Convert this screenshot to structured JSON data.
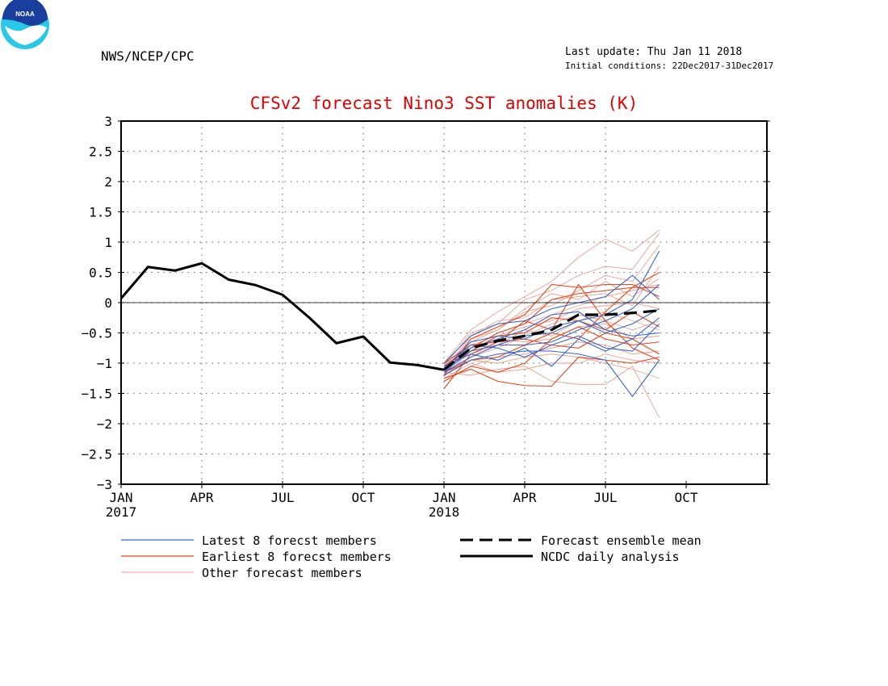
{
  "header": {
    "logo_text": "NOAA",
    "agency": "NWS/NCEP/CPC",
    "last_update": "Last update: Thu Jan 11 2018",
    "initial_conditions": "Initial conditions: 22Dec2017-31Dec2017"
  },
  "colors": {
    "title": "#e00000",
    "latest_members": "#3366cc",
    "earliest_members": "#e8451a",
    "other_members": "#e8a090",
    "analysis": "#000000",
    "ensemble_mean": "#000000"
  },
  "chart_data": {
    "type": "line",
    "title": "CFSv2 forecast Nino3 SST anomalies (K)",
    "ylim": [
      -3,
      3
    ],
    "yticks": [
      "3",
      "2.5",
      "2",
      "1.5",
      "1",
      "0.5",
      "0",
      "−0.5",
      "−1",
      "−1.5",
      "−2",
      "−2.5",
      "−3"
    ],
    "xticks": [
      {
        "label": "JAN",
        "sub": "2017"
      },
      {
        "label": "APR",
        "sub": ""
      },
      {
        "label": "JUL",
        "sub": ""
      },
      {
        "label": "OCT",
        "sub": ""
      },
      {
        "label": "JAN",
        "sub": "2018"
      },
      {
        "label": "APR",
        "sub": ""
      },
      {
        "label": "JUL",
        "sub": ""
      },
      {
        "label": "OCT",
        "sub": ""
      }
    ],
    "x_months": [
      "Jan 2017",
      "Feb 2017",
      "Mar 2017",
      "Apr 2017",
      "May 2017",
      "Jun 2017",
      "Jul 2017",
      "Aug 2017",
      "Sep 2017",
      "Oct 2017",
      "Nov 2017",
      "Dec 2017",
      "Jan 2018",
      "Feb 2018",
      "Mar 2018",
      "Apr 2018",
      "May 2018",
      "Jun 2018",
      "Jul 2018",
      "Aug 2018",
      "Sep 2018",
      "Oct 2018"
    ],
    "grid": true,
    "legend": {
      "latest": "Latest 8 forecst members",
      "earliest": "Earliest 8 forecst members",
      "other": "Other forecast members",
      "mean": "Forecast ensemble mean",
      "analysis": "NCDC daily analysis"
    },
    "series": [
      {
        "name": "NCDC daily analysis",
        "style": "analysis",
        "x": [
          "Jan 2017",
          "Feb 2017",
          "Mar 2017",
          "Apr 2017",
          "May 2017",
          "Jun 2017",
          "Jul 2017",
          "Aug 2017",
          "Sep 2017",
          "Oct 2017",
          "Nov 2017",
          "Dec 2017",
          "Jan 2018"
        ],
        "values": [
          0.07,
          0.59,
          0.53,
          0.65,
          0.38,
          0.29,
          0.13,
          -0.25,
          -0.67,
          -0.56,
          -0.99,
          -1.03,
          -1.11
        ]
      },
      {
        "name": "Forecast ensemble mean",
        "style": "mean",
        "x": [
          "Jan 2018",
          "Feb 2018",
          "Mar 2018",
          "Apr 2018",
          "May 2018",
          "Jun 2018",
          "Jul 2018",
          "Aug 2018",
          "Sep 2018"
        ],
        "values": [
          -1.11,
          -0.75,
          -0.63,
          -0.55,
          -0.45,
          -0.2,
          -0.2,
          -0.17,
          -0.13
        ]
      }
    ],
    "members": [
      {
        "style": "latest",
        "values": [
          -1.1,
          -0.65,
          -0.55,
          -0.6,
          -0.4,
          -0.3,
          -0.2,
          0.05,
          0.85
        ]
      },
      {
        "style": "latest",
        "values": [
          -1.15,
          -0.8,
          -0.7,
          -0.7,
          -0.65,
          -0.45,
          -0.3,
          -0.1,
          0.3
        ]
      },
      {
        "style": "latest",
        "values": [
          -1.2,
          -0.95,
          -0.85,
          -0.8,
          -0.8,
          -0.85,
          -0.95,
          -1.55,
          -0.95
        ]
      },
      {
        "style": "latest",
        "values": [
          -1.0,
          -0.55,
          -0.35,
          -0.3,
          -0.1,
          0.0,
          0.1,
          0.45,
          0.05
        ]
      },
      {
        "style": "latest",
        "values": [
          -1.05,
          -0.85,
          -0.95,
          -0.75,
          -1.05,
          -0.6,
          -0.8,
          -0.6,
          -0.25
        ]
      },
      {
        "style": "latest",
        "values": [
          -1.12,
          -0.75,
          -0.6,
          -0.45,
          -0.2,
          -0.15,
          -0.45,
          -0.55,
          -0.5
        ]
      },
      {
        "style": "latest",
        "values": [
          -1.08,
          -0.7,
          -0.75,
          -0.9,
          -0.7,
          -0.55,
          -0.75,
          -0.8,
          -0.35
        ]
      },
      {
        "style": "latest",
        "values": [
          -1.15,
          -0.9,
          -0.7,
          -0.55,
          -0.5,
          -0.3,
          -0.5,
          -0.35,
          -0.1
        ]
      },
      {
        "style": "earliest",
        "values": [
          -1.25,
          -1.1,
          -1.3,
          -1.37,
          -1.38,
          -0.9,
          -0.95,
          -1.0,
          -0.9
        ]
      },
      {
        "style": "earliest",
        "values": [
          -1.42,
          -0.85,
          -0.65,
          -0.3,
          -0.45,
          0.3,
          -0.3,
          -0.75,
          -0.95
        ]
      },
      {
        "style": "earliest",
        "values": [
          -1.15,
          -0.95,
          -0.9,
          -0.7,
          -0.5,
          -0.6,
          -0.15,
          0.25,
          0.5
        ]
      },
      {
        "style": "earliest",
        "values": [
          -1.05,
          -0.75,
          -0.5,
          -0.35,
          0.05,
          0.15,
          0.2,
          0.25,
          0.25
        ]
      },
      {
        "style": "earliest",
        "values": [
          -1.3,
          -1.05,
          -1.15,
          -1.0,
          -0.6,
          -0.4,
          -0.6,
          -0.7,
          -0.65
        ]
      },
      {
        "style": "earliest",
        "values": [
          -1.1,
          -0.8,
          -0.55,
          -0.5,
          -0.25,
          -0.3,
          -0.45,
          -0.15,
          -0.4
        ]
      },
      {
        "style": "earliest",
        "values": [
          -1.2,
          -0.6,
          -0.4,
          -0.2,
          0.3,
          0.25,
          0.3,
          0.3,
          0.1
        ]
      },
      {
        "style": "earliest",
        "values": [
          -1.0,
          -0.7,
          -0.65,
          -0.6,
          -0.7,
          -0.75,
          -0.5,
          -0.6,
          -0.85
        ]
      },
      {
        "style": "other",
        "values": [
          -1.0,
          -0.45,
          -0.15,
          0.1,
          0.35,
          0.75,
          1.05,
          0.85,
          1.2
        ]
      },
      {
        "style": "other",
        "values": [
          -1.05,
          -0.5,
          -0.35,
          0.05,
          0.2,
          0.45,
          0.6,
          0.55,
          1.15
        ]
      },
      {
        "style": "other",
        "values": [
          -1.15,
          -1.2,
          -1.1,
          -1.05,
          -1.3,
          -1.35,
          -1.35,
          -1.05,
          -1.9
        ]
      },
      {
        "style": "other",
        "values": [
          -1.25,
          -1.0,
          -1.15,
          -1.1,
          -1.0,
          -1.0,
          -0.85,
          -0.95,
          -1.0
        ]
      },
      {
        "style": "other",
        "values": [
          -1.1,
          -0.6,
          -0.45,
          -0.1,
          0.15,
          0.05,
          0.35,
          0.1,
          0.4
        ]
      },
      {
        "style": "other",
        "values": [
          -1.2,
          -0.9,
          -0.75,
          -0.55,
          -0.35,
          -0.2,
          -0.3,
          -0.45,
          -0.3
        ]
      },
      {
        "style": "other",
        "values": [
          -1.05,
          -0.7,
          -0.55,
          -0.4,
          -0.3,
          -0.1,
          -0.05,
          0.0,
          -0.1
        ]
      },
      {
        "style": "other",
        "values": [
          -1.3,
          -1.05,
          -0.9,
          -0.85,
          -0.75,
          -0.65,
          -0.7,
          -0.85,
          -0.8
        ]
      },
      {
        "style": "other",
        "values": [
          -1.12,
          -0.55,
          -0.3,
          -0.25,
          0.05,
          0.1,
          0.15,
          -0.05,
          0.6
        ]
      },
      {
        "style": "other",
        "values": [
          -1.0,
          -0.85,
          -0.7,
          -0.45,
          -0.55,
          -0.3,
          -0.15,
          -0.3,
          -0.45
        ]
      },
      {
        "style": "other",
        "values": [
          -1.18,
          -0.95,
          -1.0,
          -0.9,
          -0.85,
          -0.9,
          -1.0,
          -1.1,
          -1.25
        ]
      },
      {
        "style": "other",
        "values": [
          -1.08,
          -0.65,
          -0.45,
          -0.15,
          -0.05,
          0.2,
          0.45,
          0.35,
          0.95
        ]
      },
      {
        "style": "other",
        "values": [
          -1.22,
          -0.8,
          -0.6,
          -0.65,
          -0.6,
          -0.4,
          -0.35,
          -0.6,
          -0.55
        ]
      },
      {
        "style": "other",
        "values": [
          -1.02,
          -0.75,
          -0.5,
          -0.35,
          -0.2,
          -0.05,
          0.1,
          0.2,
          0.3
        ]
      }
    ]
  }
}
